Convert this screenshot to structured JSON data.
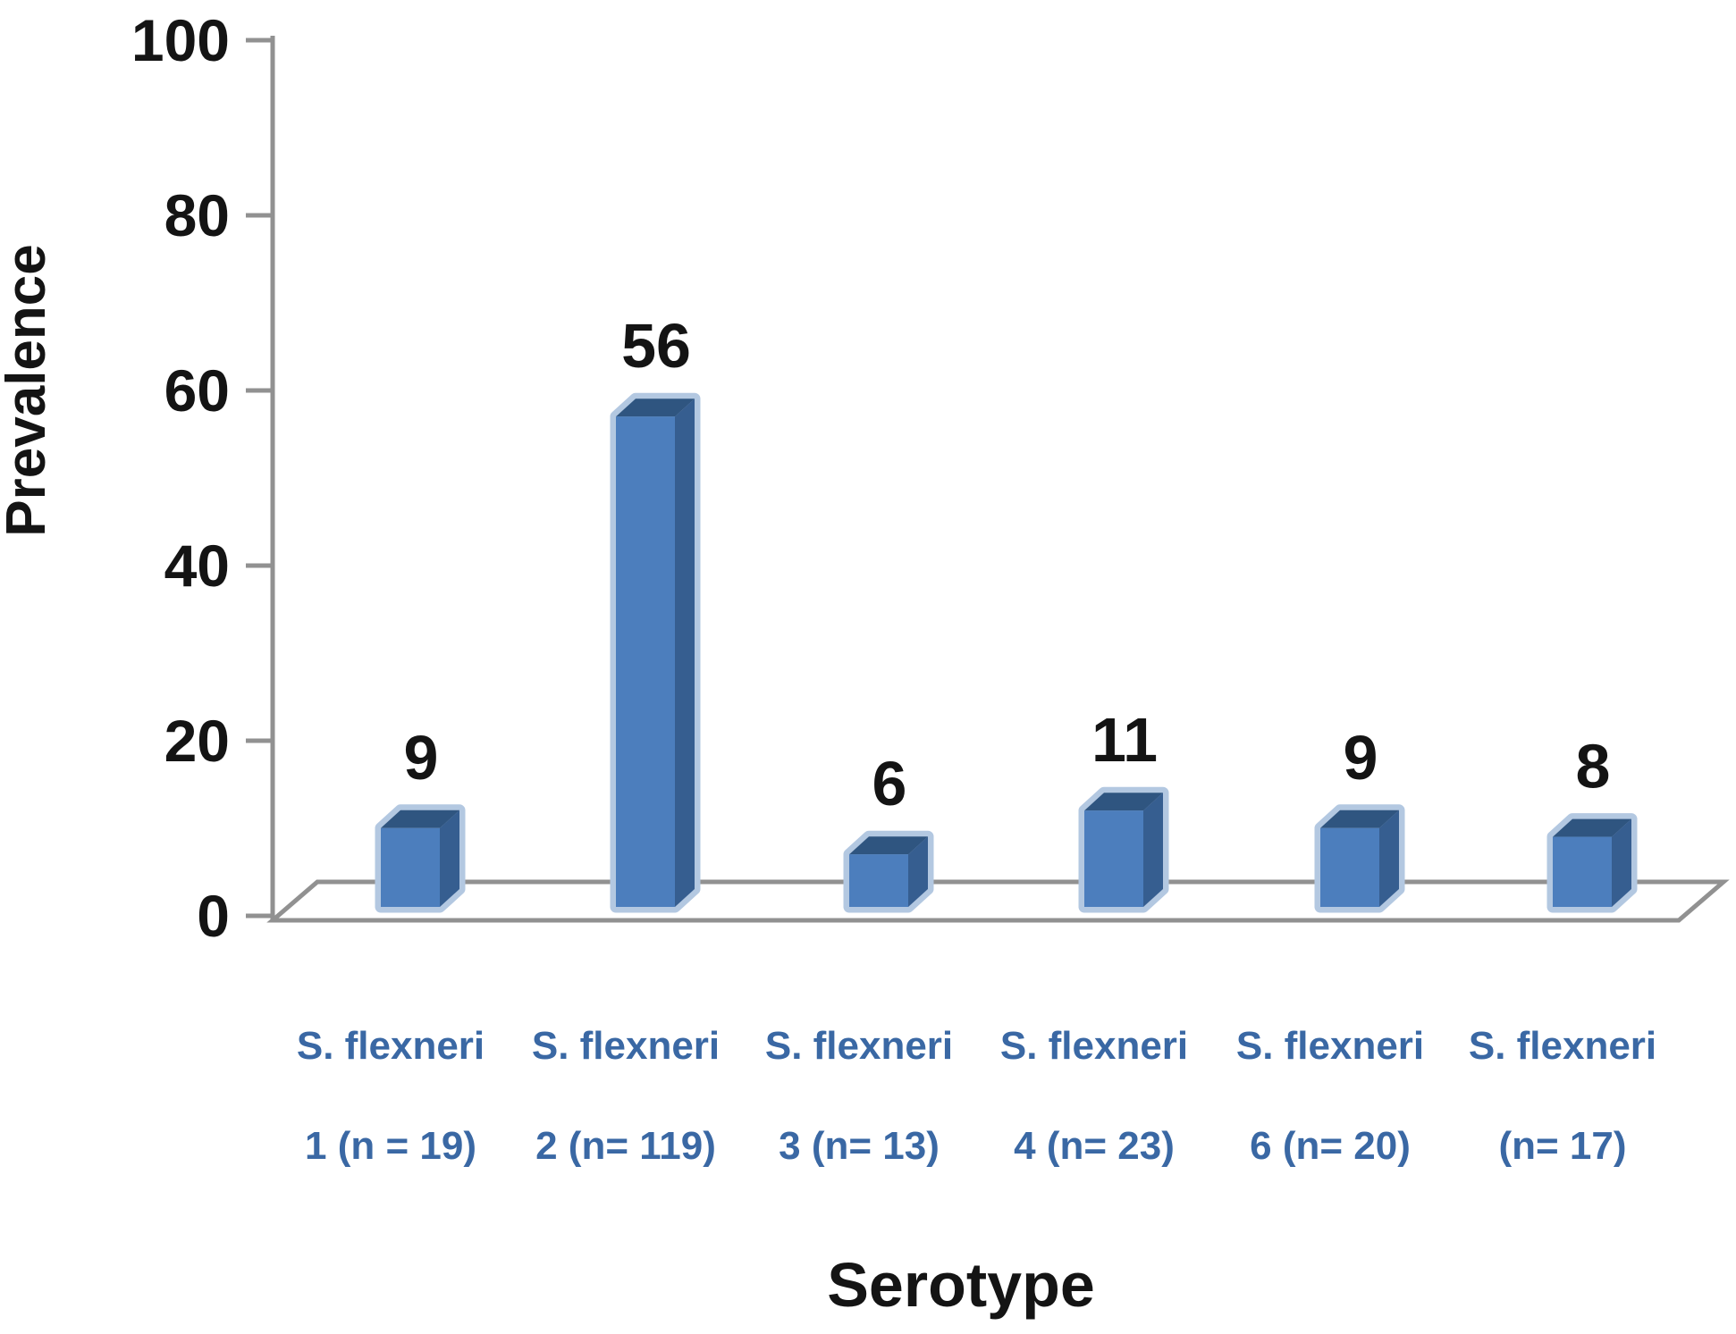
{
  "chart_data": {
    "type": "bar",
    "style": "3d-column",
    "title": "",
    "ylabel": "Prevalence",
    "xlabel": "Serotype",
    "ylim": [
      0,
      100
    ],
    "yticks": [
      0,
      20,
      40,
      60,
      80,
      100
    ],
    "grid": false,
    "legend": null,
    "bars": [
      {
        "label_line1": "S. flexneri",
        "label_line2": "1 (n = 19)",
        "value": 9
      },
      {
        "label_line1": "S. flexneri",
        "label_line2": "2 (n= 119)",
        "value": 56
      },
      {
        "label_line1": "S. flexneri",
        "label_line2": "3 (n= 13)",
        "value": 6
      },
      {
        "label_line1": "S. flexneri",
        "label_line2": "4 (n= 23)",
        "value": 11
      },
      {
        "label_line1": "S. flexneri",
        "label_line2": "6 (n= 20)",
        "value": 9
      },
      {
        "label_line1": "S. flexneri",
        "label_line2": "(n= 17)",
        "value": 8
      }
    ],
    "colors": {
      "bar_front": "#4C7EBD",
      "bar_side": "#365E90",
      "bar_top": "#2F5580",
      "bar_halo": "#B3C8E1",
      "axis": "#919191",
      "text": "#141414",
      "category_label": "#3A68A4",
      "background": "#FFFFFF"
    }
  }
}
